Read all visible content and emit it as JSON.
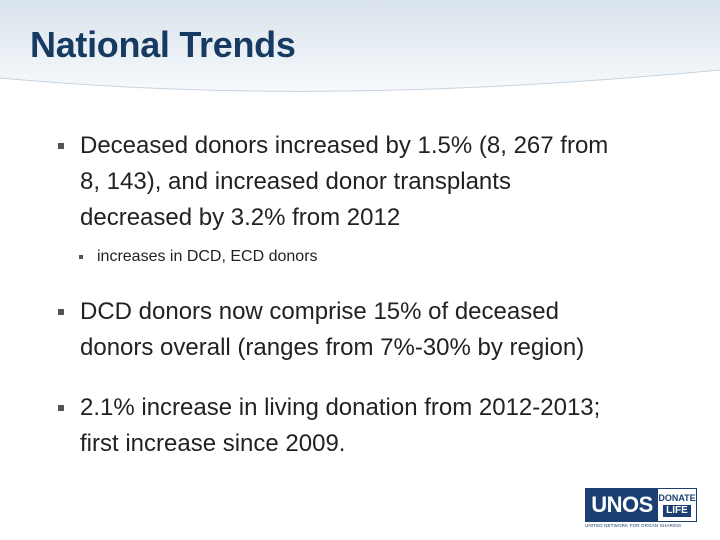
{
  "slide": {
    "title": "National Trends",
    "bullets": [
      {
        "lines": [
          "Deceased donors increased by 1.5% (8, 267 from",
          "8, 143), and increased donor transplants",
          "decreased by 3.2% from 2012"
        ],
        "sub": [
          "increases in DCD, ECD donors"
        ]
      },
      {
        "lines": [
          "DCD donors now comprise 15% of deceased",
          "donors overall (ranges from 7%-30% by region)"
        ]
      },
      {
        "lines": [
          "2.1% increase in living donation from 2012-2013;",
          "first increase since 2009."
        ]
      }
    ]
  },
  "logo": {
    "name": "UNOS",
    "badge_top": "DONATE",
    "badge_bottom": "LIFE",
    "tagline": "UNITED NETWORK FOR ORGAN SHARING"
  },
  "colors": {
    "title": "#173a63",
    "brand": "#1b3f72",
    "text": "#222222"
  }
}
